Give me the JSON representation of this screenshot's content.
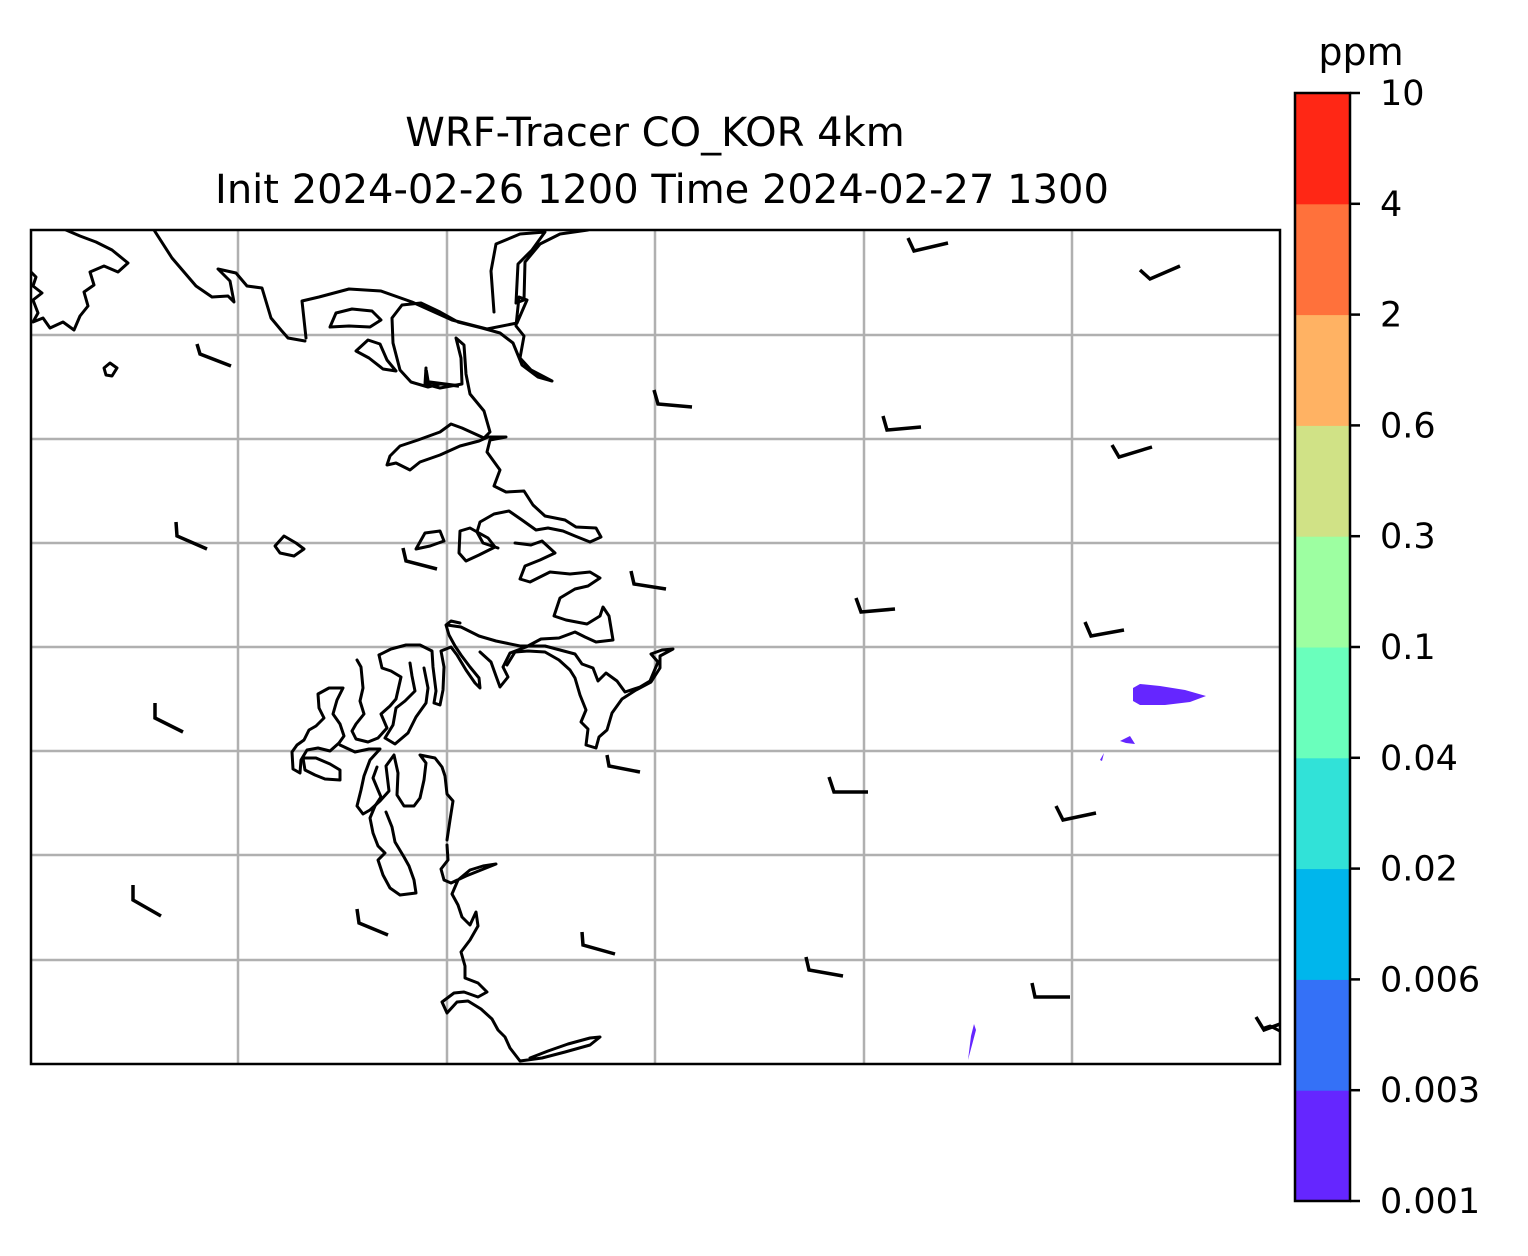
{
  "title": {
    "line1": "WRF-Tracer CO_KOR 4km",
    "line2": "Init 2024-02-26 1200 Time 2024-02-27 1300"
  },
  "colorbar": {
    "unit": "ppm",
    "ticks": [
      "0.001",
      "0.003",
      "0.006",
      "0.02",
      "0.04",
      "0.1",
      "0.3",
      "0.6",
      "2",
      "4",
      "10"
    ],
    "colors": [
      "#6526ff",
      "#3471f7",
      "#00b6ec",
      "#31e2d8",
      "#6affbc",
      "#9dffa1",
      "#d0e286",
      "#ffb263",
      "#ff713b",
      "#ff2715"
    ]
  },
  "colors": {
    "gridline": "#b0b0b0",
    "coastline": "#000000",
    "tracer_fill": "#6526ff"
  },
  "map": {
    "gridlines": "on",
    "features": [
      "coastline",
      "wind barbs",
      "tracer concentration fill"
    ]
  }
}
